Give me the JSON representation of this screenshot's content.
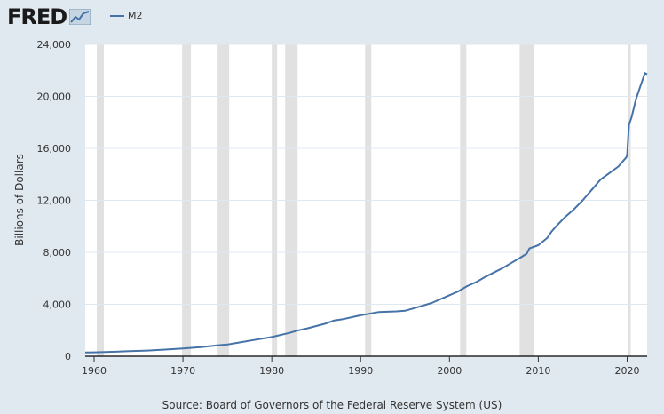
{
  "logo": {
    "text": "FRED"
  },
  "legend": {
    "label": "M2",
    "color": "#4572a7"
  },
  "source": "Source: Board of Governors of the Federal Reserve System (US)",
  "colors": {
    "background": "#e1e9f0",
    "plot": "#ffffff",
    "line": "#4572a7",
    "recession": "#e1e1e1",
    "grid": "#e1e9f0"
  },
  "chart_data": {
    "type": "line",
    "ylabel": "Billions of Dollars",
    "ylim": [
      0,
      24000
    ],
    "xlim": [
      1959.0,
      2022.25
    ],
    "y_ticks": [
      0,
      4000,
      8000,
      12000,
      16000,
      20000,
      24000
    ],
    "y_tick_labels": [
      "0",
      "4,000",
      "8,000",
      "12,000",
      "16,000",
      "20,000",
      "24,000"
    ],
    "x_ticks": [
      1960,
      1970,
      1980,
      1990,
      2000,
      2010,
      2020
    ],
    "x_tick_labels": [
      "1960",
      "1970",
      "1980",
      "1990",
      "2000",
      "2010",
      "2020"
    ],
    "grid": true,
    "recessions": [
      [
        1960.3,
        1961.1
      ],
      [
        1969.9,
        1970.9
      ],
      [
        1973.9,
        1975.2
      ],
      [
        1980.0,
        1980.6
      ],
      [
        1981.5,
        1982.9
      ],
      [
        1990.5,
        1991.2
      ],
      [
        2001.2,
        2001.9
      ],
      [
        2007.9,
        2009.5
      ],
      [
        2020.1,
        2020.4
      ]
    ],
    "series": [
      {
        "name": "M2",
        "x": [
          1959.0,
          1960,
          1962,
          1964,
          1966,
          1968,
          1970,
          1972,
          1974,
          1975,
          1976,
          1978,
          1980,
          1982,
          1983,
          1984,
          1986,
          1987,
          1988,
          1990,
          1992,
          1994,
          1995,
          1996,
          1998,
          2000,
          2001,
          2002,
          2003,
          2004,
          2005,
          2006,
          2007,
          2008,
          2008.7,
          2009,
          2010,
          2011,
          2011.5,
          2012,
          2013,
          2014,
          2015,
          2016,
          2017,
          2018,
          2019,
          2019.9,
          2020.0,
          2020.2,
          2020.5,
          2021,
          2021.5,
          2022.0,
          2022.25
        ],
        "y": [
          290,
          300,
          340,
          390,
          440,
          510,
          600,
          700,
          850,
          900,
          1020,
          1250,
          1480,
          1800,
          2000,
          2150,
          2500,
          2750,
          2850,
          3150,
          3400,
          3450,
          3500,
          3700,
          4100,
          4700,
          5000,
          5400,
          5700,
          6100,
          6450,
          6800,
          7200,
          7600,
          7900,
          8300,
          8550,
          9100,
          9600,
          10000,
          10700,
          11300,
          12000,
          12800,
          13600,
          14100,
          14600,
          15300,
          15500,
          17800,
          18400,
          19800,
          20800,
          21800,
          21700
        ]
      }
    ]
  }
}
